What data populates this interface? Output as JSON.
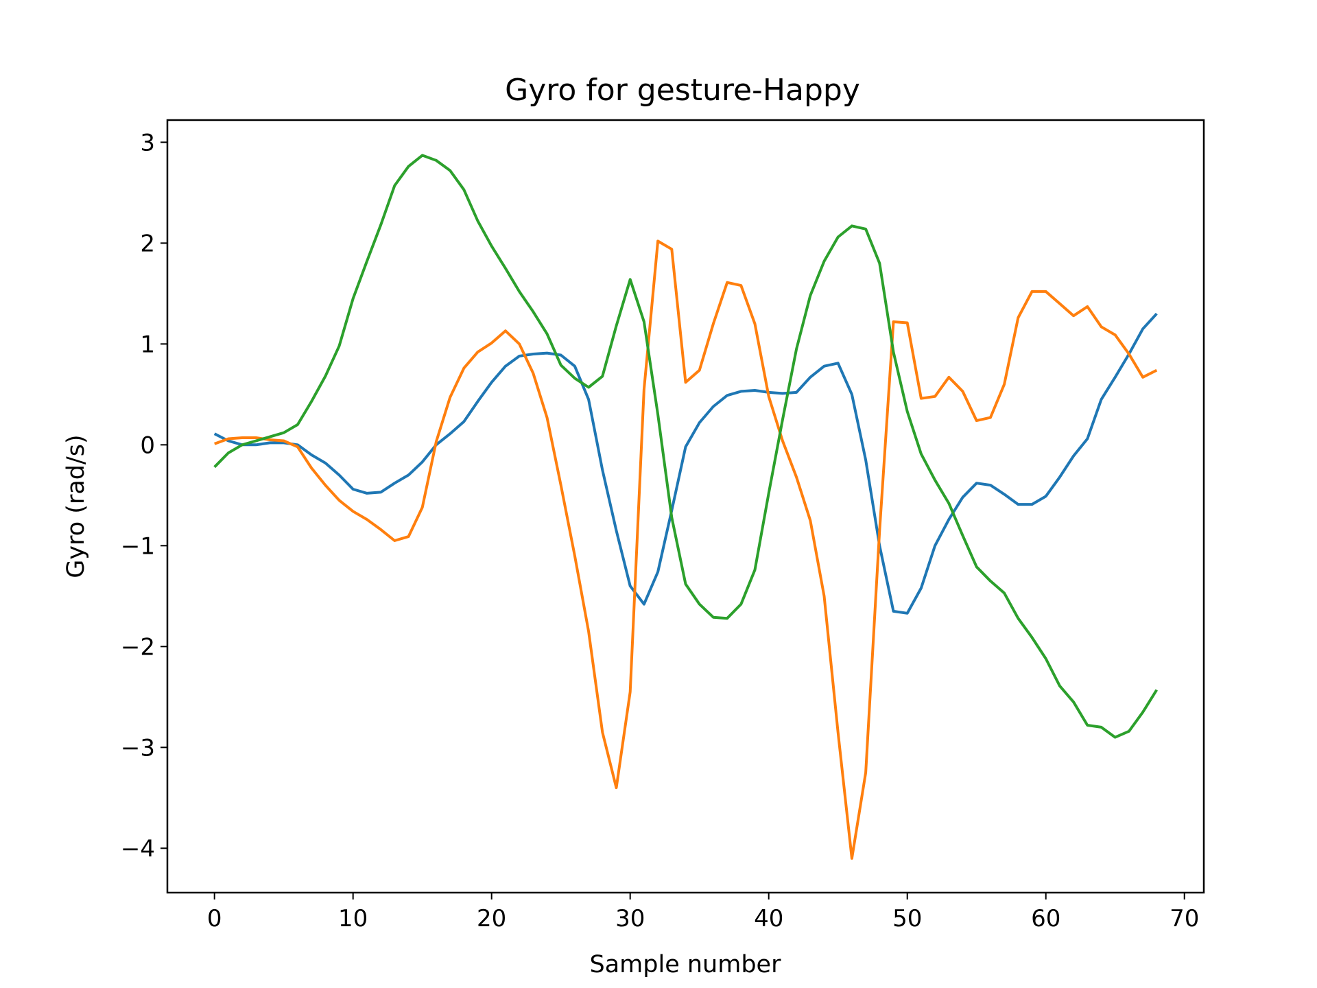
{
  "chart_data": {
    "type": "line",
    "title": "Gyro for gesture-Happy",
    "xlabel": "Sample number",
    "ylabel": "Gyro  (rad/s)",
    "xlim": [
      -3.4,
      71.4
    ],
    "ylim": [
      -4.44,
      3.22
    ],
    "xticks": [
      0,
      10,
      20,
      30,
      40,
      50,
      60,
      70
    ],
    "yticks": [
      -4,
      -3,
      -2,
      -1,
      0,
      1,
      2,
      3
    ],
    "grid": false,
    "legend": "none",
    "x": [
      0,
      1,
      2,
      3,
      4,
      5,
      6,
      7,
      8,
      9,
      10,
      11,
      12,
      13,
      14,
      15,
      16,
      17,
      18,
      19,
      20,
      21,
      22,
      23,
      24,
      25,
      26,
      27,
      28,
      29,
      30,
      31,
      32,
      33,
      34,
      35,
      36,
      37,
      38,
      39,
      40,
      41,
      42,
      43,
      44,
      45,
      46,
      47,
      48,
      49,
      50,
      51,
      52,
      53,
      54,
      55,
      56,
      57,
      58,
      59,
      60,
      61,
      62,
      63,
      64,
      65,
      66,
      67,
      68
    ],
    "series": [
      {
        "color": "#1f77b4",
        "values": [
          0.11,
          0.04,
          0.0,
          0.0,
          0.02,
          0.02,
          0.0,
          -0.1,
          -0.18,
          -0.3,
          -0.44,
          -0.48,
          -0.47,
          -0.38,
          -0.3,
          -0.17,
          0.0,
          0.11,
          0.23,
          0.43,
          0.62,
          0.78,
          0.88,
          0.9,
          0.91,
          0.89,
          0.78,
          0.45,
          -0.25,
          -0.85,
          -1.4,
          -1.58,
          -1.26,
          -0.65,
          -0.02,
          0.22,
          0.38,
          0.49,
          0.53,
          0.54,
          0.52,
          0.51,
          0.52,
          0.67,
          0.78,
          0.81,
          0.5,
          -0.15,
          -1.0,
          -1.65,
          -1.67,
          -1.42,
          -1.0,
          -0.74,
          -0.52,
          -0.38,
          -0.4,
          -0.49,
          -0.59,
          -0.59,
          -0.51,
          -0.32,
          -0.11,
          0.06,
          0.45,
          0.67,
          0.9,
          1.15,
          1.3
        ]
      },
      {
        "color": "#ff7f0e",
        "values": [
          0.01,
          0.06,
          0.07,
          0.07,
          0.05,
          0.04,
          -0.02,
          -0.23,
          -0.4,
          -0.55,
          -0.66,
          -0.74,
          -0.84,
          -0.95,
          -0.91,
          -0.62,
          0.03,
          0.47,
          0.76,
          0.92,
          1.01,
          1.13,
          1.0,
          0.71,
          0.27,
          -0.4,
          -1.1,
          -1.85,
          -2.85,
          -3.4,
          -2.45,
          0.55,
          2.02,
          1.94,
          0.62,
          0.74,
          1.2,
          1.61,
          1.58,
          1.2,
          0.48,
          0.04,
          -0.32,
          -0.75,
          -1.5,
          -2.85,
          -4.1,
          -3.25,
          -0.85,
          1.22,
          1.21,
          0.46,
          0.48,
          0.67,
          0.53,
          0.24,
          0.27,
          0.6,
          1.26,
          1.52,
          1.52,
          1.4,
          1.28,
          1.37,
          1.17,
          1.09,
          0.9,
          0.67,
          0.74
        ]
      },
      {
        "color": "#2ca02c",
        "values": [
          -0.22,
          -0.08,
          0.0,
          0.04,
          0.08,
          0.12,
          0.2,
          0.43,
          0.68,
          0.98,
          1.45,
          1.82,
          2.18,
          2.57,
          2.76,
          2.87,
          2.82,
          2.72,
          2.53,
          2.22,
          1.97,
          1.75,
          1.52,
          1.32,
          1.1,
          0.79,
          0.66,
          0.57,
          0.68,
          1.18,
          1.64,
          1.22,
          0.3,
          -0.72,
          -1.38,
          -1.58,
          -1.71,
          -1.72,
          -1.58,
          -1.24,
          -0.48,
          0.25,
          0.95,
          1.48,
          1.82,
          2.06,
          2.17,
          2.14,
          1.8,
          0.92,
          0.33,
          -0.09,
          -0.35,
          -0.58,
          -0.9,
          -1.21,
          -1.35,
          -1.47,
          -1.72,
          -1.91,
          -2.12,
          -2.39,
          -2.55,
          -2.78,
          -2.8,
          -2.9,
          -2.84,
          -2.65,
          -2.43
        ]
      }
    ]
  }
}
